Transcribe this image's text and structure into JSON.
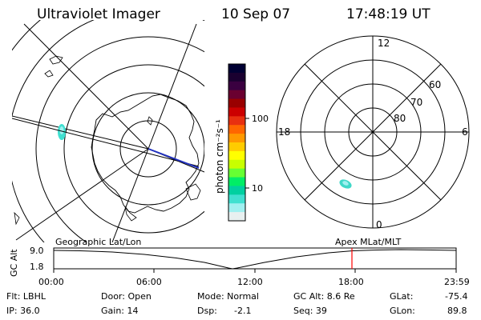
{
  "header": {
    "instrument": "Ultraviolet Imager",
    "date": "10 Sep 07",
    "time": "17:48:19 UT"
  },
  "colorbar": {
    "unit_label": "photon cm⁻²s⁻¹",
    "ticks": [
      "100",
      "10"
    ],
    "colors": [
      "#000033",
      "#1a0030",
      "#3a0040",
      "#6a0030",
      "#990000",
      "#cc0000",
      "#e83010",
      "#ff6600",
      "#ff9900",
      "#ffcc00",
      "#ffff00",
      "#c8ff00",
      "#66ff33",
      "#00ee66",
      "#00d0a0",
      "#40e0d0",
      "#a0f0f0",
      "#e8f0f0"
    ]
  },
  "right_plot": {
    "mlt_labels": {
      "top": "12",
      "left": "18",
      "right": "6",
      "bottom": "0"
    },
    "lat_labels": [
      "60",
      "70",
      "80"
    ],
    "spot_color": "#40d8c8"
  },
  "timeline": {
    "left_title": "Geographic Lat/Lon",
    "right_title": "Apex  MLat/MLT",
    "y_axis_label": "GC Alt",
    "y_ticks": [
      "9.0",
      "1.8"
    ],
    "x_ticks": [
      "00:00",
      "06:00",
      "12:00",
      "18:00",
      "23:59"
    ],
    "marker_color": "#ff0000"
  },
  "footer": {
    "flt": "Flt: LBHL",
    "ip": "IP: 36.0",
    "door": "Door: Open",
    "gain": "Gain: 14",
    "mode": "Mode: Normal",
    "dsp_label": "Dsp:",
    "dsp_value": "-2.1",
    "gc_alt": "GC Alt: 8.6 Re",
    "seq": "Seq: 39",
    "glat_label": "GLat:",
    "glat_value": "-75.4",
    "glon_label": "GLon:",
    "glon_value": "89.8"
  }
}
